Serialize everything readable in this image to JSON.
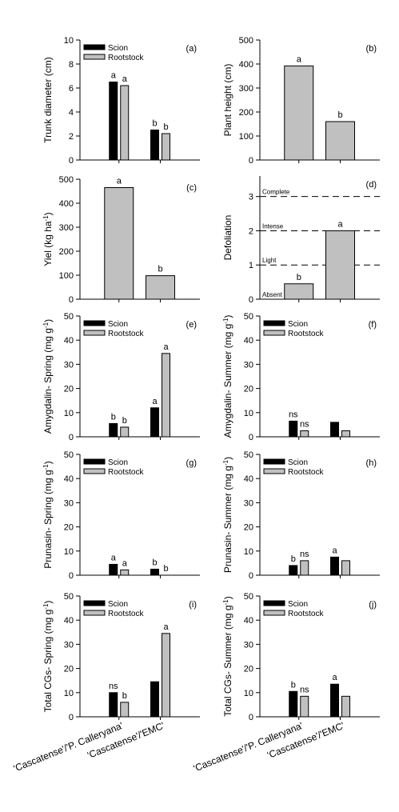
{
  "colors": {
    "scion": "#000000",
    "rootstock": "#c0c0c0",
    "axis": "#000000"
  },
  "x_categories": [
    "'Cascatense'/'P. Calleryana'",
    "'Cascatense'/'EMC'"
  ],
  "chart_data": [
    {
      "type": "bar",
      "panel_label": "(a)",
      "ylabel": "Trunk diameter (cm)",
      "ylim": [
        0,
        10
      ],
      "yticks": [
        "0",
        "2",
        "4",
        "6",
        "8",
        "10"
      ],
      "categories": [
        "'Cascatense'/'P. Calleryana'",
        "'Cascatense'/'EMC'"
      ],
      "legend": [
        "Scion",
        "Rootstock"
      ],
      "legend_position": "top-left",
      "series": [
        {
          "name": "Scion",
          "values": [
            6.5,
            2.5
          ],
          "labels": [
            "a",
            "b"
          ]
        },
        {
          "name": "Rootstock",
          "values": [
            6.2,
            2.2
          ],
          "labels": [
            "a",
            "b"
          ]
        }
      ]
    },
    {
      "type": "bar",
      "panel_label": "(b)",
      "ylabel": "Plant height (cm)",
      "ylim": [
        0,
        500
      ],
      "yticks": [
        "0",
        "100",
        "200",
        "300",
        "400",
        "500"
      ],
      "categories": [
        "'Cascatense'/'P. Calleryana'",
        "'Cascatense'/'EMC'"
      ],
      "legend": [],
      "series": [
        {
          "values": [
            392,
            160
          ],
          "labels": [
            "a",
            "b"
          ]
        }
      ]
    },
    {
      "type": "bar",
      "panel_label": "(c)",
      "ylabel": "Yiel (kg ha-1)",
      "ylabel_main": "Yiel (kg ha",
      "ylabel_sup": "-1",
      "ylabel_end": ")",
      "ylim": [
        0,
        500
      ],
      "yticks": [
        "0",
        "100",
        "200",
        "300",
        "400",
        "500"
      ],
      "categories": [
        "'Cascatense'/'P. Calleryana'",
        "'Cascatense'/'EMC'"
      ],
      "legend": [],
      "series": [
        {
          "values": [
            465,
            98
          ],
          "labels": [
            "a",
            "b"
          ]
        }
      ]
    },
    {
      "type": "bar",
      "panel_label": "(d)",
      "ylabel": "Defoliation",
      "ylim": [
        0,
        3.6
      ],
      "yticks": [
        "0",
        "1",
        "2",
        "3"
      ],
      "categories": [
        "'Cascatense'/'P. Calleryana'",
        "'Cascatense'/'EMC'"
      ],
      "legend": [],
      "reference_lines": [
        {
          "value": 0,
          "label": "Absent"
        },
        {
          "value": 1,
          "label": "Light"
        },
        {
          "value": 2,
          "label": "Intense"
        },
        {
          "value": 3,
          "label": "Complete"
        }
      ],
      "series": [
        {
          "values": [
            0.45,
            2.0
          ],
          "labels": [
            "b",
            "a"
          ]
        }
      ]
    },
    {
      "type": "bar",
      "panel_label": "(e)",
      "ylabel": "Amygdalin- Spring (mg g-1)",
      "ylabel_main": "Amygdalin- Spring (mg g",
      "ylabel_sup": "-1",
      "ylabel_end": ")",
      "ylim": [
        0,
        50
      ],
      "yticks": [
        "0",
        "10",
        "20",
        "30",
        "40",
        "50"
      ],
      "categories": [
        "'Cascatense'/'P. Calleryana'",
        "'Cascatense'/'EMC'"
      ],
      "legend": [
        "Scion",
        "Rootstock"
      ],
      "legend_position": "top-left",
      "series": [
        {
          "name": "Scion",
          "values": [
            5.5,
            12
          ],
          "labels": [
            "b",
            "a"
          ]
        },
        {
          "name": "Rootstock",
          "values": [
            4,
            34.5
          ],
          "labels": [
            "b",
            "a"
          ]
        }
      ]
    },
    {
      "type": "bar",
      "panel_label": "(f)",
      "ylabel": "Amygdalin- Summer (mg g-1)",
      "ylabel_main": "Amygdalin- Summer (mg g",
      "ylabel_sup": "-1",
      "ylabel_end": ")",
      "ylim": [
        0,
        50
      ],
      "yticks": [
        "0",
        "10",
        "20",
        "30",
        "40",
        "50"
      ],
      "categories": [
        "'Cascatense'/'P. Calleryana'",
        "'Cascatense'/'EMC'"
      ],
      "legend": [
        "Scion",
        "Rootstock"
      ],
      "legend_position": "top-left",
      "series": [
        {
          "name": "Scion",
          "values": [
            6.5,
            6
          ],
          "labels": [
            "ns",
            ""
          ]
        },
        {
          "name": "Rootstock",
          "values": [
            2.5,
            2.5
          ],
          "labels": [
            "ns",
            ""
          ]
        }
      ]
    },
    {
      "type": "bar",
      "panel_label": "(g)",
      "ylabel": "Prunasin- Spring (mg g-1)",
      "ylabel_main": "Prunasin- Spring (mg g",
      "ylabel_sup": "-1",
      "ylabel_end": ")",
      "ylim": [
        0,
        50
      ],
      "yticks": [
        "0",
        "10",
        "20",
        "30",
        "40",
        "50"
      ],
      "categories": [
        "'Cascatense'/'P. Calleryana'",
        "'Cascatense'/'EMC'"
      ],
      "legend": [
        "Scion",
        "Rootstock"
      ],
      "legend_position": "top-left",
      "series": [
        {
          "name": "Scion",
          "values": [
            4.5,
            2.5
          ],
          "labels": [
            "a",
            "b"
          ]
        },
        {
          "name": "Rootstock",
          "values": [
            2.2,
            0
          ],
          "labels": [
            "a",
            "b"
          ]
        }
      ]
    },
    {
      "type": "bar",
      "panel_label": "(h)",
      "ylabel": "Prunasin- Summer (mg g-1)",
      "ylabel_main": "Prunasin- Summer (mg g",
      "ylabel_sup": "-1",
      "ylabel_end": ")",
      "ylim": [
        0,
        50
      ],
      "yticks": [
        "0",
        "10",
        "20",
        "30",
        "40",
        "50"
      ],
      "categories": [
        "'Cascatense'/'P. Calleryana'",
        "'Cascatense'/'EMC'"
      ],
      "legend": [
        "Scion",
        "Rootstock"
      ],
      "legend_position": "top-left",
      "series": [
        {
          "name": "Scion",
          "values": [
            4,
            7.5
          ],
          "labels": [
            "b",
            "a"
          ]
        },
        {
          "name": "Rootstock",
          "values": [
            6,
            6
          ],
          "labels": [
            "ns",
            ""
          ]
        }
      ]
    },
    {
      "type": "bar",
      "panel_label": "(i)",
      "ylabel": "Total CGs- Spring (mg g-1)",
      "ylabel_main": "Total CGs- Spring (mg g",
      "ylabel_sup": "-1",
      "ylabel_end": ")",
      "ylim": [
        0,
        50
      ],
      "yticks": [
        "0",
        "10",
        "20",
        "30",
        "40",
        "50"
      ],
      "categories": [
        "'Cascatense'/'P. Calleryana'",
        "'Cascatense'/'EMC'"
      ],
      "legend": [
        "Scion",
        "Rootstock"
      ],
      "legend_position": "top-left",
      "series": [
        {
          "name": "Scion",
          "values": [
            10,
            14.5
          ],
          "labels": [
            "ns",
            ""
          ]
        },
        {
          "name": "Rootstock",
          "values": [
            6,
            34.5
          ],
          "labels": [
            "b",
            "a"
          ]
        }
      ]
    },
    {
      "type": "bar",
      "panel_label": "(j)",
      "ylabel": "Total CGs- Summer (mg g-1)",
      "ylabel_main": "Total CGs- Summer (mg g",
      "ylabel_sup": "-1",
      "ylabel_end": ")",
      "ylim": [
        0,
        50
      ],
      "yticks": [
        "0",
        "10",
        "20",
        "30",
        "40",
        "50"
      ],
      "categories": [
        "'Cascatense'/'P. Calleryana'",
        "'Cascatense'/'EMC'"
      ],
      "legend": [
        "Scion",
        "Rootstock"
      ],
      "legend_position": "top-left",
      "series": [
        {
          "name": "Scion",
          "values": [
            10.5,
            13.5
          ],
          "labels": [
            "b",
            "a"
          ]
        },
        {
          "name": "Rootstock",
          "values": [
            8.5,
            8.5
          ],
          "labels": [
            "ns",
            ""
          ]
        }
      ]
    }
  ]
}
